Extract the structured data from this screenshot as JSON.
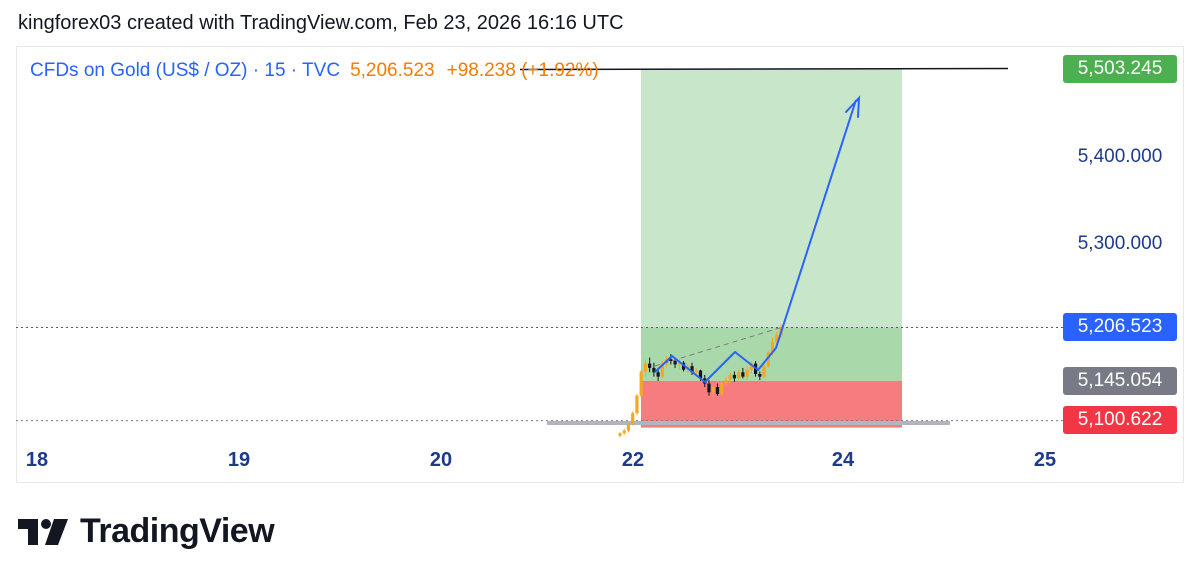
{
  "header": {
    "caption": "kingforex03 created with TradingView.com, Feb 23, 2026 16:16 UTC"
  },
  "legend": {
    "symbol": "CFDs on Gold (US$ / OZ) · 15 · TVC",
    "price": "5,206.523",
    "change": "+98.238 (+1.92%)"
  },
  "brand": {
    "name": "TradingView",
    "icon": "tradingview-logo-icon"
  },
  "colors": {
    "target": "#4caf50",
    "current": "#2962ff",
    "entry": "#787b86",
    "stop": "#f23645",
    "profit_zone": "#c8e6c9",
    "loss_zone": "#f77c80",
    "candle_up": "#f5a623",
    "candle_down": "#131722",
    "axis_text": "#1e3a8a"
  },
  "chart_data": {
    "type": "candlestick",
    "symbol": "CFDs on Gold (US$ / OZ)",
    "timeframe": "15",
    "x_ticks": [
      {
        "value": 18,
        "label": "18"
      },
      {
        "value": 19,
        "label": "19"
      },
      {
        "value": 20,
        "label": "20"
      },
      {
        "value": 22,
        "label": "22"
      },
      {
        "value": 24,
        "label": "24"
      },
      {
        "value": 25,
        "label": "25"
      }
    ],
    "y_ticks": [
      {
        "value": 5400,
        "label": "5,400.000"
      },
      {
        "value": 5300,
        "label": "5,300.000"
      }
    ],
    "ylim": [
      5080,
      5520
    ],
    "price_tags": [
      {
        "name": "target",
        "value": 5503.245,
        "label": "5,503.245",
        "color": "#4caf50"
      },
      {
        "name": "current",
        "value": 5206.523,
        "label": "5,206.523",
        "color": "#2962ff"
      },
      {
        "name": "entry",
        "value": 5145.054,
        "label": "5,145.054",
        "color": "#787b86"
      },
      {
        "name": "stop",
        "value": 5100.622,
        "label": "5,100.622",
        "color": "#f23645"
      }
    ],
    "position": {
      "type": "long",
      "entry": 5145.054,
      "target": 5503.245,
      "stop": 5100.622,
      "current": 5206.523
    },
    "candles": [
      [
        5082,
        5086,
        5080,
        5085
      ],
      [
        5085,
        5090,
        5083,
        5088
      ],
      [
        5088,
        5097,
        5086,
        5095
      ],
      [
        5095,
        5110,
        5094,
        5108
      ],
      [
        5108,
        5130,
        5106,
        5128
      ],
      [
        5128,
        5158,
        5126,
        5156
      ],
      [
        5156,
        5170,
        5150,
        5165
      ],
      [
        5165,
        5172,
        5155,
        5160
      ],
      [
        5160,
        5166,
        5150,
        5155
      ],
      [
        5155,
        5160,
        5145,
        5150
      ],
      [
        5150,
        5168,
        5148,
        5165
      ],
      [
        5165,
        5174,
        5160,
        5170
      ],
      [
        5170,
        5176,
        5164,
        5168
      ],
      [
        5168,
        5172,
        5160,
        5164
      ],
      [
        5164,
        5170,
        5158,
        5166
      ],
      [
        5166,
        5168,
        5156,
        5158
      ],
      [
        5158,
        5165,
        5154,
        5162
      ],
      [
        5162,
        5166,
        5152,
        5155
      ],
      [
        5155,
        5160,
        5150,
        5157
      ],
      [
        5157,
        5158,
        5145,
        5148
      ],
      [
        5148,
        5152,
        5138,
        5142
      ],
      [
        5142,
        5146,
        5128,
        5132
      ],
      [
        5132,
        5140,
        5126,
        5138
      ],
      [
        5138,
        5142,
        5128,
        5130
      ],
      [
        5130,
        5145,
        5128,
        5143
      ],
      [
        5143,
        5150,
        5140,
        5146
      ],
      [
        5146,
        5155,
        5142,
        5152
      ],
      [
        5152,
        5156,
        5144,
        5148
      ],
      [
        5148,
        5158,
        5146,
        5155
      ],
      [
        5155,
        5160,
        5148,
        5150
      ],
      [
        5150,
        5162,
        5146,
        5158
      ],
      [
        5158,
        5168,
        5154,
        5165
      ],
      [
        5165,
        5168,
        5150,
        5153
      ],
      [
        5153,
        5156,
        5146,
        5150
      ],
      [
        5150,
        5165,
        5148,
        5162
      ],
      [
        5162,
        5180,
        5160,
        5178
      ],
      [
        5178,
        5195,
        5175,
        5190
      ],
      [
        5190,
        5202,
        5186,
        5198
      ],
      [
        5198,
        5210,
        5194,
        5206.523
      ]
    ],
    "projection_path": [
      [
        22.15,
        5168
      ],
      [
        22.35,
        5150
      ],
      [
        22.6,
        5172
      ],
      [
        22.85,
        5148
      ],
      [
        23.1,
        5170
      ],
      [
        23.3,
        5155
      ],
      [
        24.05,
        5468
      ]
    ],
    "trendline": [
      [
        22.0,
        5160
      ],
      [
        23.3,
        5206.523
      ]
    ]
  }
}
